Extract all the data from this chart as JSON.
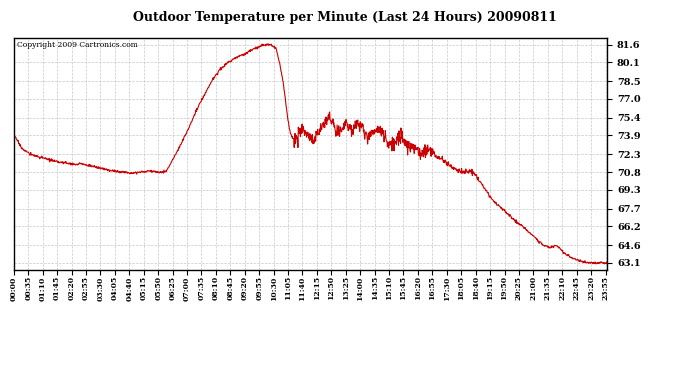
{
  "title": "Outdoor Temperature per Minute (Last 24 Hours) 20090811",
  "copyright": "Copyright 2009 Cartronics.com",
  "line_color": "#CC0000",
  "bg_color": "#ffffff",
  "plot_bg_color": "#ffffff",
  "grid_color": "#bbbbbb",
  "yticks": [
    63.1,
    64.6,
    66.2,
    67.7,
    69.3,
    70.8,
    72.3,
    73.9,
    75.4,
    77.0,
    78.5,
    80.1,
    81.6
  ],
  "ylim": [
    62.5,
    82.2
  ],
  "xlim": [
    0,
    1439
  ],
  "xtick_interval": 35,
  "xtick_labels": [
    "00:00",
    "00:35",
    "01:10",
    "01:45",
    "02:20",
    "02:55",
    "03:30",
    "04:05",
    "04:40",
    "05:15",
    "05:50",
    "06:25",
    "07:00",
    "07:35",
    "08:10",
    "08:45",
    "09:20",
    "09:55",
    "10:30",
    "11:05",
    "11:40",
    "12:15",
    "12:50",
    "13:25",
    "14:00",
    "14:35",
    "15:10",
    "15:45",
    "16:20",
    "16:55",
    "17:30",
    "18:05",
    "18:40",
    "19:15",
    "19:50",
    "20:25",
    "21:00",
    "21:35",
    "22:10",
    "22:45",
    "23:20",
    "23:55"
  ],
  "line_width": 0.8,
  "control_points": [
    [
      0,
      73.9
    ],
    [
      10,
      73.4
    ],
    [
      20,
      72.8
    ],
    [
      40,
      72.3
    ],
    [
      60,
      72.1
    ],
    [
      80,
      71.9
    ],
    [
      100,
      71.7
    ],
    [
      120,
      71.6
    ],
    [
      140,
      71.5
    ],
    [
      155,
      71.4
    ],
    [
      160,
      71.55
    ],
    [
      175,
      71.4
    ],
    [
      185,
      71.35
    ],
    [
      200,
      71.2
    ],
    [
      215,
      71.1
    ],
    [
      230,
      70.95
    ],
    [
      250,
      70.85
    ],
    [
      265,
      70.8
    ],
    [
      280,
      70.75
    ],
    [
      295,
      70.75
    ],
    [
      310,
      70.8
    ],
    [
      320,
      70.85
    ],
    [
      330,
      70.9
    ],
    [
      340,
      70.85
    ],
    [
      350,
      70.8
    ],
    [
      360,
      70.8
    ],
    [
      370,
      70.9
    ],
    [
      385,
      71.8
    ],
    [
      400,
      72.8
    ],
    [
      420,
      74.2
    ],
    [
      440,
      75.8
    ],
    [
      460,
      77.2
    ],
    [
      480,
      78.5
    ],
    [
      500,
      79.5
    ],
    [
      520,
      80.1
    ],
    [
      540,
      80.5
    ],
    [
      560,
      80.8
    ],
    [
      580,
      81.2
    ],
    [
      600,
      81.5
    ],
    [
      615,
      81.6
    ],
    [
      625,
      81.55
    ],
    [
      635,
      81.3
    ],
    [
      645,
      80.0
    ],
    [
      655,
      78.0
    ],
    [
      660,
      76.5
    ],
    [
      665,
      75.2
    ],
    [
      670,
      74.2
    ],
    [
      675,
      73.8
    ],
    [
      680,
      73.5
    ],
    [
      685,
      73.6
    ],
    [
      690,
      73.9
    ],
    [
      695,
      74.1
    ],
    [
      700,
      74.3
    ],
    [
      705,
      74.1
    ],
    [
      710,
      73.9
    ],
    [
      715,
      73.7
    ],
    [
      720,
      73.5
    ],
    [
      725,
      73.4
    ],
    [
      730,
      73.6
    ],
    [
      735,
      73.9
    ],
    [
      740,
      74.2
    ],
    [
      750,
      74.8
    ],
    [
      760,
      75.2
    ],
    [
      765,
      75.4
    ],
    [
      770,
      75.2
    ],
    [
      775,
      74.8
    ],
    [
      780,
      74.5
    ],
    [
      785,
      74.2
    ],
    [
      790,
      74.0
    ],
    [
      795,
      74.3
    ],
    [
      800,
      74.6
    ],
    [
      805,
      75.0
    ],
    [
      810,
      74.8
    ],
    [
      815,
      74.5
    ],
    [
      820,
      74.2
    ],
    [
      825,
      74.5
    ],
    [
      830,
      74.8
    ],
    [
      835,
      75.0
    ],
    [
      840,
      74.8
    ],
    [
      845,
      74.5
    ],
    [
      850,
      74.2
    ],
    [
      855,
      74.0
    ],
    [
      860,
      73.8
    ],
    [
      870,
      74.0
    ],
    [
      880,
      74.3
    ],
    [
      885,
      74.5
    ],
    [
      890,
      74.2
    ],
    [
      895,
      73.9
    ],
    [
      900,
      73.7
    ],
    [
      905,
      73.5
    ],
    [
      910,
      73.3
    ],
    [
      920,
      73.2
    ],
    [
      930,
      73.5
    ],
    [
      940,
      73.8
    ],
    [
      945,
      73.5
    ],
    [
      950,
      73.2
    ],
    [
      960,
      73.0
    ],
    [
      970,
      72.8
    ],
    [
      980,
      72.5
    ],
    [
      990,
      72.3
    ],
    [
      1000,
      72.5
    ],
    [
      1005,
      72.8
    ],
    [
      1010,
      72.5
    ],
    [
      1015,
      72.3
    ],
    [
      1020,
      72.2
    ],
    [
      1030,
      72.0
    ],
    [
      1040,
      71.8
    ],
    [
      1060,
      71.3
    ],
    [
      1080,
      70.9
    ],
    [
      1090,
      70.8
    ],
    [
      1100,
      70.85
    ],
    [
      1110,
      70.8
    ],
    [
      1120,
      70.5
    ],
    [
      1130,
      70.0
    ],
    [
      1140,
      69.5
    ],
    [
      1150,
      69.0
    ],
    [
      1160,
      68.5
    ],
    [
      1180,
      67.8
    ],
    [
      1200,
      67.2
    ],
    [
      1220,
      66.5
    ],
    [
      1230,
      66.3
    ],
    [
      1240,
      66.0
    ],
    [
      1250,
      65.7
    ],
    [
      1260,
      65.4
    ],
    [
      1270,
      65.0
    ],
    [
      1280,
      64.7
    ],
    [
      1290,
      64.5
    ],
    [
      1300,
      64.4
    ],
    [
      1310,
      64.5
    ],
    [
      1315,
      64.6
    ],
    [
      1320,
      64.5
    ],
    [
      1325,
      64.3
    ],
    [
      1330,
      64.1
    ],
    [
      1340,
      63.8
    ],
    [
      1350,
      63.6
    ],
    [
      1360,
      63.4
    ],
    [
      1370,
      63.3
    ],
    [
      1380,
      63.2
    ],
    [
      1390,
      63.15
    ],
    [
      1400,
      63.1
    ],
    [
      1420,
      63.1
    ],
    [
      1435,
      63.1
    ],
    [
      1439,
      63.1
    ]
  ],
  "noise_regions": [
    {
      "start": 680,
      "end": 1020,
      "scale": 0.28
    },
    {
      "start": 1020,
      "end": 1130,
      "scale": 0.12
    }
  ],
  "noise_base": 0.05,
  "random_seed": 17
}
